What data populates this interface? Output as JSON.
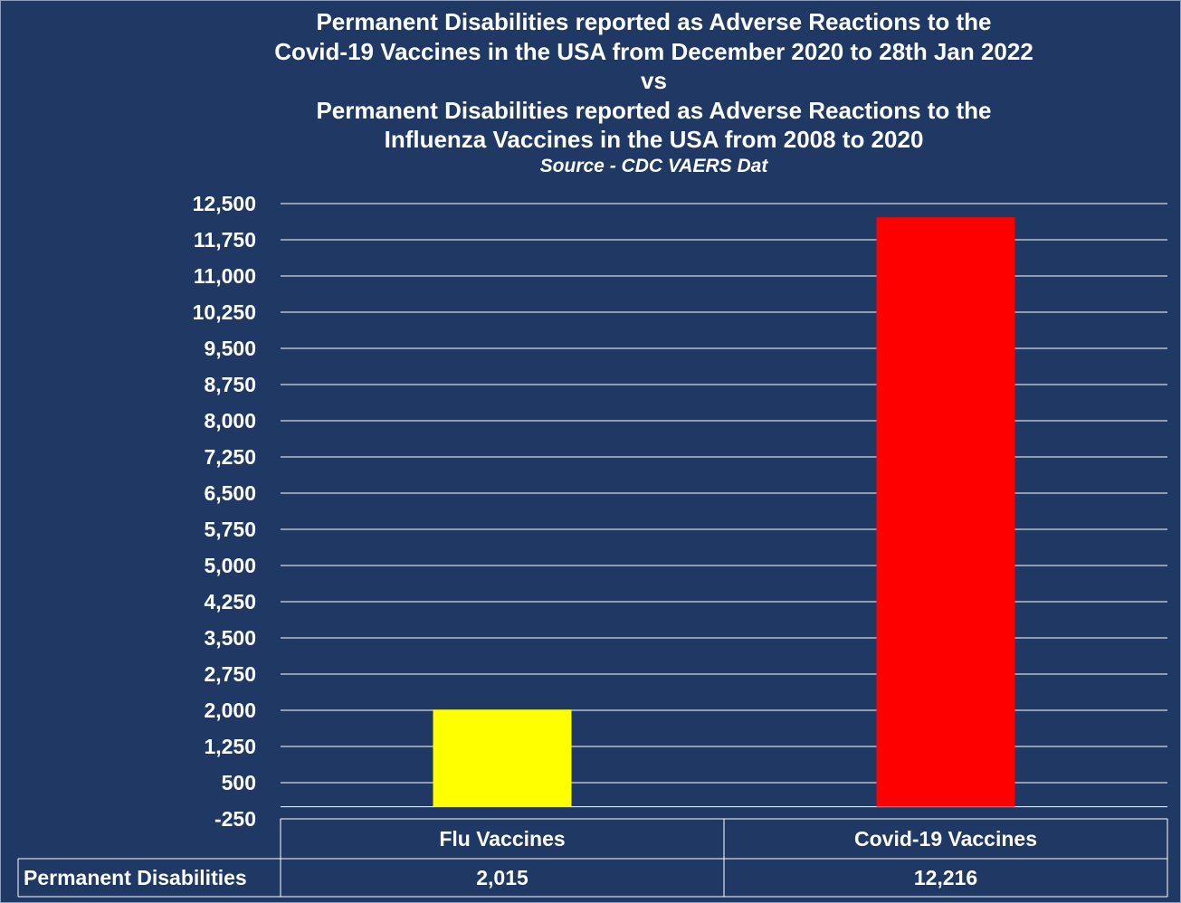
{
  "chart_data": {
    "type": "bar",
    "title": [
      "Permanent Disabilities reported as Adverse Reactions to the",
      "Covid-19 Vaccines in the USA from December 2020 to 28th Jan 2022",
      "vs",
      "Permanent Disabilities reported as Adverse Reactions to the",
      "Influenza Vaccines in the USA from 2008 to 2020"
    ],
    "subtitle": "Source - CDC VAERS Dat",
    "categories": [
      "Flu Vaccines",
      "Covid-19 Vaccines"
    ],
    "series": [
      {
        "name": "Permanent Disabilities",
        "values": [
          2015,
          12216
        ],
        "value_labels": [
          "2,015",
          "12,216"
        ]
      }
    ],
    "bar_colors": [
      "#ffff00",
      "#ff0000"
    ],
    "ylim": [
      -250,
      12500
    ],
    "yticks": [
      -250,
      500,
      1250,
      2000,
      2750,
      3500,
      4250,
      5000,
      5750,
      6500,
      7250,
      8000,
      8750,
      9500,
      10250,
      11000,
      11750,
      12500
    ],
    "ytick_labels": [
      "-250",
      "500",
      "1,250",
      "2,000",
      "2,750",
      "3,500",
      "4,250",
      "5,000",
      "5,750",
      "6,500",
      "7,250",
      "8,000",
      "8,750",
      "9,500",
      "10,250",
      "11,000",
      "11,750",
      "12,500"
    ],
    "grid": true,
    "data_table": true,
    "background_color": "#1f3864",
    "gridline_color": "#ffffff"
  }
}
